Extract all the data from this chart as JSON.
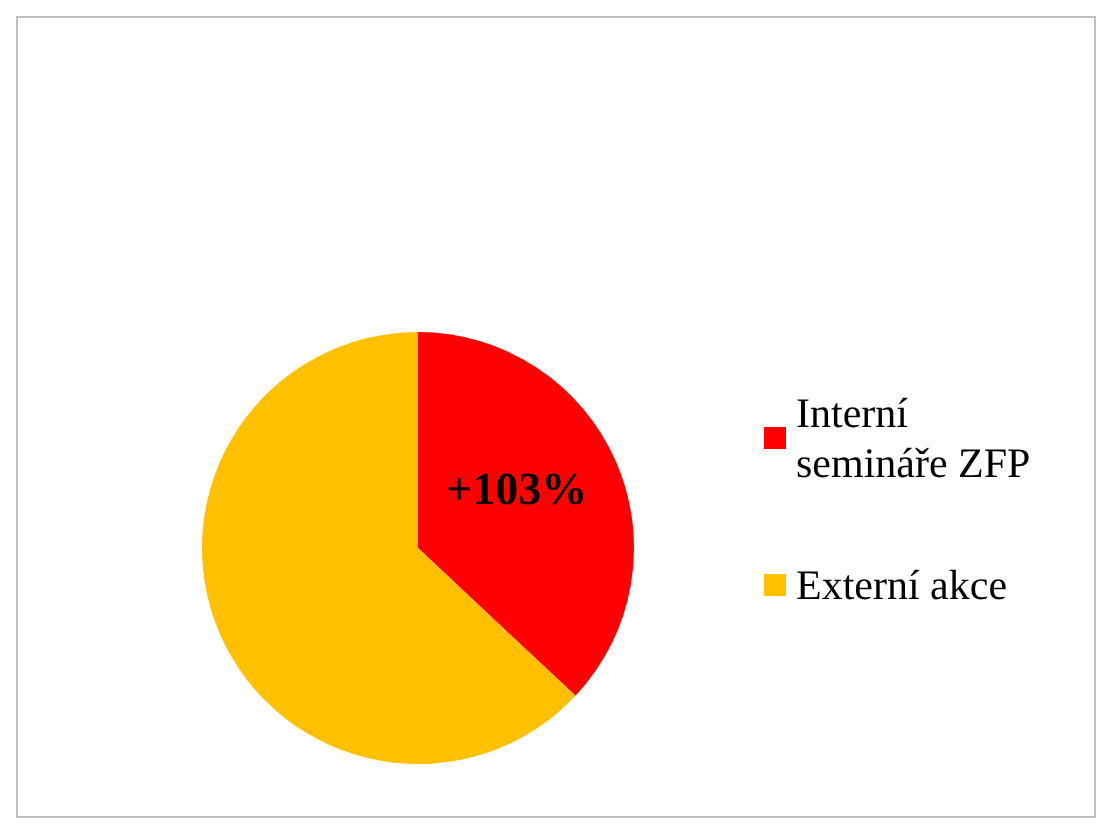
{
  "chart_data": {
    "type": "pie",
    "categories": [
      "Interní semináře ZFP",
      "Externí akce"
    ],
    "values": [
      37,
      63
    ],
    "colors": [
      "#ff0000",
      "#ffc000"
    ],
    "legend": "right",
    "annotations": [
      "+103%"
    ]
  }
}
